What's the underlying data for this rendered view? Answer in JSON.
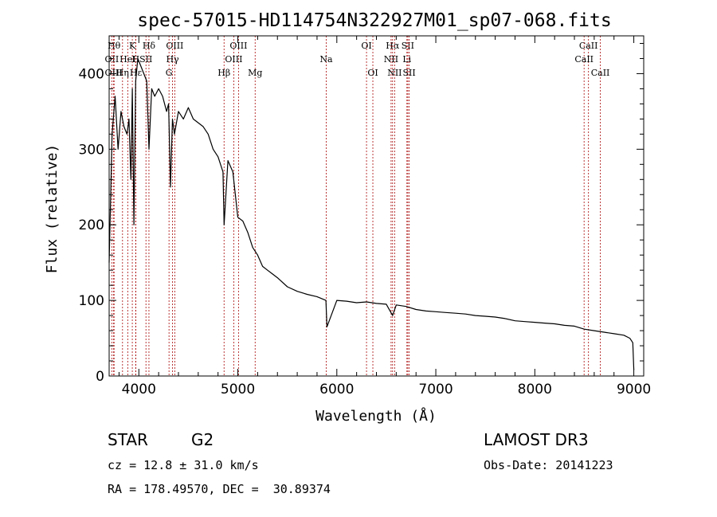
{
  "chart_data": {
    "type": "line",
    "title": "spec-57015-HD114754N322927M01_sp07-068.fits",
    "xlabel": "Wavelength (Å)",
    "ylabel": "Flux (relative)",
    "xlim": [
      3700,
      9100
    ],
    "ylim": [
      0,
      450
    ],
    "xticks": [
      4000,
      5000,
      6000,
      7000,
      8000,
      9000
    ],
    "yticks": [
      0,
      100,
      200,
      300,
      400
    ],
    "series": [
      {
        "name": "spectrum",
        "x": [
          3700,
          3730,
          3760,
          3790,
          3820,
          3850,
          3880,
          3900,
          3920,
          3934,
          3950,
          3968,
          3990,
          4020,
          4050,
          4080,
          4102,
          4130,
          4160,
          4200,
          4240,
          4280,
          4300,
          4320,
          4340,
          4360,
          4400,
          4450,
          4500,
          4550,
          4600,
          4650,
          4700,
          4750,
          4800,
          4850,
          4861,
          4900,
          4950,
          5000,
          5050,
          5100,
          5150,
          5200,
          5250,
          5300,
          5350,
          5400,
          5500,
          5600,
          5700,
          5800,
          5890,
          5900,
          6000,
          6100,
          6200,
          6300,
          6400,
          6500,
          6563,
          6600,
          6700,
          6800,
          6900,
          7000,
          7100,
          7200,
          7300,
          7400,
          7500,
          7600,
          7700,
          7800,
          7900,
          8000,
          8100,
          8200,
          8300,
          8400,
          8500,
          8600,
          8700,
          8800,
          8900,
          8960,
          8990,
          9000
        ],
        "y": [
          150,
          320,
          370,
          300,
          350,
          330,
          320,
          340,
          260,
          380,
          200,
          390,
          420,
          410,
          400,
          390,
          300,
          380,
          370,
          380,
          370,
          350,
          360,
          250,
          340,
          320,
          350,
          340,
          355,
          340,
          335,
          330,
          320,
          300,
          290,
          270,
          200,
          285,
          270,
          210,
          205,
          190,
          170,
          160,
          145,
          140,
          135,
          130,
          118,
          112,
          108,
          105,
          100,
          65,
          100,
          99,
          97,
          98,
          96,
          95,
          80,
          94,
          92,
          88,
          86,
          85,
          84,
          83,
          82,
          80,
          79,
          78,
          76,
          73,
          72,
          71,
          70,
          69,
          67,
          66,
          62,
          60,
          58,
          56,
          54,
          50,
          44,
          8
        ]
      }
    ],
    "spectral_lines": [
      {
        "label": "Hθ",
        "x": 3750,
        "row": 0
      },
      {
        "label": "OII",
        "x": 3727,
        "row": 1
      },
      {
        "label": "OIII",
        "x": 3745,
        "row": 2
      },
      {
        "label": "K",
        "x": 3934,
        "row": 0
      },
      {
        "label": "H",
        "x": 3968,
        "row": 1
      },
      {
        "label": "HeI",
        "x": 3888,
        "row": 1
      },
      {
        "label": "Hη",
        "x": 3835,
        "row": 2
      },
      {
        "label": "Hε",
        "x": 3970,
        "row": 2
      },
      {
        "label": "Hδ",
        "x": 4102,
        "row": 0
      },
      {
        "label": "SII",
        "x": 4072,
        "row": 1
      },
      {
        "label": "OIII",
        "x": 4363,
        "row": 0
      },
      {
        "label": "Hγ",
        "x": 4340,
        "row": 1
      },
      {
        "label": "G",
        "x": 4305,
        "row": 2
      },
      {
        "label": "Hβ",
        "x": 4861,
        "row": 2
      },
      {
        "label": "OIII",
        "x": 5007,
        "row": 0
      },
      {
        "label": "OIII",
        "x": 4959,
        "row": 1
      },
      {
        "label": "Mg",
        "x": 5175,
        "row": 2
      },
      {
        "label": "Na",
        "x": 5893,
        "row": 1
      },
      {
        "label": "OI",
        "x": 6300,
        "row": 0
      },
      {
        "label": "OI",
        "x": 6364,
        "row": 2
      },
      {
        "label": "Hα",
        "x": 6563,
        "row": 0
      },
      {
        "label": "NII",
        "x": 6548,
        "row": 1
      },
      {
        "label": "NII",
        "x": 6584,
        "row": 2
      },
      {
        "label": "SII",
        "x": 6717,
        "row": 0
      },
      {
        "label": "Li",
        "x": 6708,
        "row": 1
      },
      {
        "label": "SII",
        "x": 6731,
        "row": 2
      },
      {
        "label": "CaII",
        "x": 8542,
        "row": 0
      },
      {
        "label": "CaII",
        "x": 8498,
        "row": 1
      },
      {
        "label": "CaII",
        "x": 8662,
        "row": 2
      }
    ]
  },
  "info": {
    "object_class": "STAR",
    "subclass": "G2",
    "survey": "LAMOST DR3",
    "cz": "cz = 12.8 ± 31.0 km/s",
    "obs_date": "Obs-Date: 20141223",
    "coords": "RA = 178.49570, DEC =  30.89374"
  },
  "colors": {
    "line_marker": "#b22222",
    "spectrum": "#000000"
  }
}
